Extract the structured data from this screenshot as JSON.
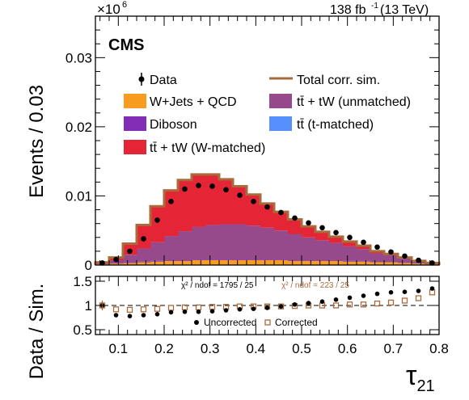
{
  "header": {
    "scale_label": "×10",
    "scale_exp": "6",
    "lumi": "138 fb",
    "lumi_exp": "-1",
    "lumi_tail": " (13 TeV)",
    "experiment": "CMS"
  },
  "colors": {
    "wjets_qcd": "#f89c20",
    "diboson": "#832db6",
    "ttbar_wmatched": "#e42536",
    "ttbar_unmatched": "#964a8b",
    "ttbar_tmatched": "#5790fc",
    "total_sim": "#a96b3c",
    "data": "#000000"
  },
  "legend": {
    "data": "Data",
    "total": "Total corr. sim.",
    "wjets": "W+Jets + QCD",
    "unmatched": "tt̄ + tW (unmatched)",
    "diboson": "Diboson",
    "tmatched": "tt̄ (t-matched)",
    "wmatched": "tt̄ + tW (W-matched)"
  },
  "ratio_text": {
    "chi2_uncorr": "χ² / ndof = 1795 / 25",
    "chi2_corr": "χ² / ndof = 223 / 25",
    "uncorrected": "Uncorrected",
    "corrected": "Corrected"
  },
  "chart_data": [
    {
      "type": "area",
      "stacked": true,
      "ylabel": "Events / 0.03",
      "y_multiplier": "×10^6",
      "ylim": [
        0,
        0.036
      ],
      "xlim": [
        0.05,
        0.8
      ],
      "yticks": [
        "0",
        "0.01",
        "0.02",
        "0.03"
      ],
      "bin_edges": [
        0.05,
        0.08,
        0.11,
        0.14,
        0.17,
        0.2,
        0.23,
        0.26,
        0.29,
        0.32,
        0.35,
        0.38,
        0.41,
        0.44,
        0.47,
        0.5,
        0.53,
        0.56,
        0.59,
        0.62,
        0.65,
        0.68,
        0.71,
        0.74,
        0.77,
        0.8
      ],
      "series": [
        {
          "name": "W+Jets + QCD",
          "values": [
            0.0001,
            0.0002,
            0.0003,
            0.0004,
            0.0005,
            0.0006,
            0.0006,
            0.0007,
            0.0007,
            0.0007,
            0.0007,
            0.0007,
            0.0007,
            0.0007,
            0.0006,
            0.0006,
            0.0006,
            0.0006,
            0.0005,
            0.0005,
            0.0004,
            0.0004,
            0.0003,
            0.0002,
            0.0001
          ]
        },
        {
          "name": "Diboson",
          "values": [
            0,
            0,
            0.0001,
            0.0001,
            0.0001,
            0.0001,
            0.0001,
            0.0001,
            0.0001,
            0.0001,
            0.0001,
            0.0001,
            0.0001,
            0.0001,
            0.0001,
            0.0001,
            0.0001,
            0.0001,
            0.0001,
            0.0001,
            0,
            0,
            0,
            0,
            0
          ]
        },
        {
          "name": "tt̄ + tW (unmatched)",
          "values": [
            0.0001,
            0.0005,
            0.0011,
            0.0019,
            0.0027,
            0.0035,
            0.0042,
            0.0047,
            0.005,
            0.0051,
            0.0051,
            0.0049,
            0.0046,
            0.0042,
            0.0038,
            0.0033,
            0.0029,
            0.0025,
            0.0021,
            0.0017,
            0.0013,
            0.001,
            0.0007,
            0.0004,
            0.0002
          ]
        },
        {
          "name": "tt̄ (t-matched)",
          "values": [
            0,
            0,
            0,
            0,
            0,
            0,
            0,
            0,
            0,
            0,
            0,
            0,
            0,
            0,
            0,
            0,
            0,
            0,
            0,
            0,
            0,
            0,
            0,
            0,
            0
          ]
        },
        {
          "name": "tt̄ + tW (W-matched)",
          "values": [
            0.0001,
            0.0004,
            0.0016,
            0.0034,
            0.0052,
            0.0066,
            0.0074,
            0.0076,
            0.0073,
            0.0065,
            0.0055,
            0.0045,
            0.0035,
            0.0027,
            0.0021,
            0.0016,
            0.0012,
            0.0009,
            0.0007,
            0.0005,
            0.0003,
            0.0002,
            0.0001,
            0,
            0
          ]
        }
      ],
      "total_corr_sim": [
        0.0004,
        0.0011,
        0.0031,
        0.0058,
        0.0085,
        0.0108,
        0.0123,
        0.0131,
        0.0131,
        0.0124,
        0.0114,
        0.0102,
        0.0089,
        0.0077,
        0.0066,
        0.0056,
        0.0048,
        0.0041,
        0.0034,
        0.0028,
        0.002,
        0.0016,
        0.0011,
        0.0006,
        0.0003
      ],
      "data": [
        0.0003,
        0.0008,
        0.002,
        0.0038,
        0.0065,
        0.0092,
        0.011,
        0.0115,
        0.0114,
        0.0109,
        0.0101,
        0.0092,
        0.0084,
        0.0076,
        0.0068,
        0.0061,
        0.0054,
        0.0047,
        0.004,
        0.0033,
        0.0026,
        0.0019,
        0.0013,
        0.0007,
        0.0003
      ]
    },
    {
      "type": "scatter",
      "ylabel": "Data / Sim.",
      "xlabel": "τ21",
      "ylim": [
        0.4,
        1.6
      ],
      "yticks": [
        "0.5",
        "1",
        "1.5"
      ],
      "xticks": [
        "0.1",
        "0.2",
        "0.3",
        "0.4",
        "0.5",
        "0.6",
        "0.7",
        "0.8"
      ],
      "x": [
        0.065,
        0.095,
        0.125,
        0.155,
        0.185,
        0.215,
        0.245,
        0.275,
        0.305,
        0.335,
        0.365,
        0.395,
        0.425,
        0.455,
        0.485,
        0.515,
        0.545,
        0.575,
        0.605,
        0.635,
        0.665,
        0.695,
        0.725,
        0.755,
        0.785
      ],
      "series": [
        {
          "name": "Uncorrected",
          "values": [
            1.0,
            0.8,
            0.78,
            0.8,
            0.82,
            0.86,
            0.87,
            0.87,
            0.88,
            0.9,
            0.92,
            0.93,
            0.95,
            0.98,
            1.02,
            1.05,
            1.08,
            1.12,
            1.16,
            1.2,
            1.24,
            1.27,
            1.28,
            1.3,
            1.35
          ]
        },
        {
          "name": "Corrected",
          "values": [
            1.0,
            0.92,
            0.91,
            0.92,
            0.93,
            0.95,
            0.96,
            0.96,
            0.97,
            0.97,
            0.98,
            0.98,
            0.98,
            0.98,
            0.99,
            1.0,
            1.0,
            1.0,
            1.02,
            1.02,
            1.04,
            1.06,
            1.1,
            1.15,
            1.27
          ]
        }
      ]
    }
  ]
}
